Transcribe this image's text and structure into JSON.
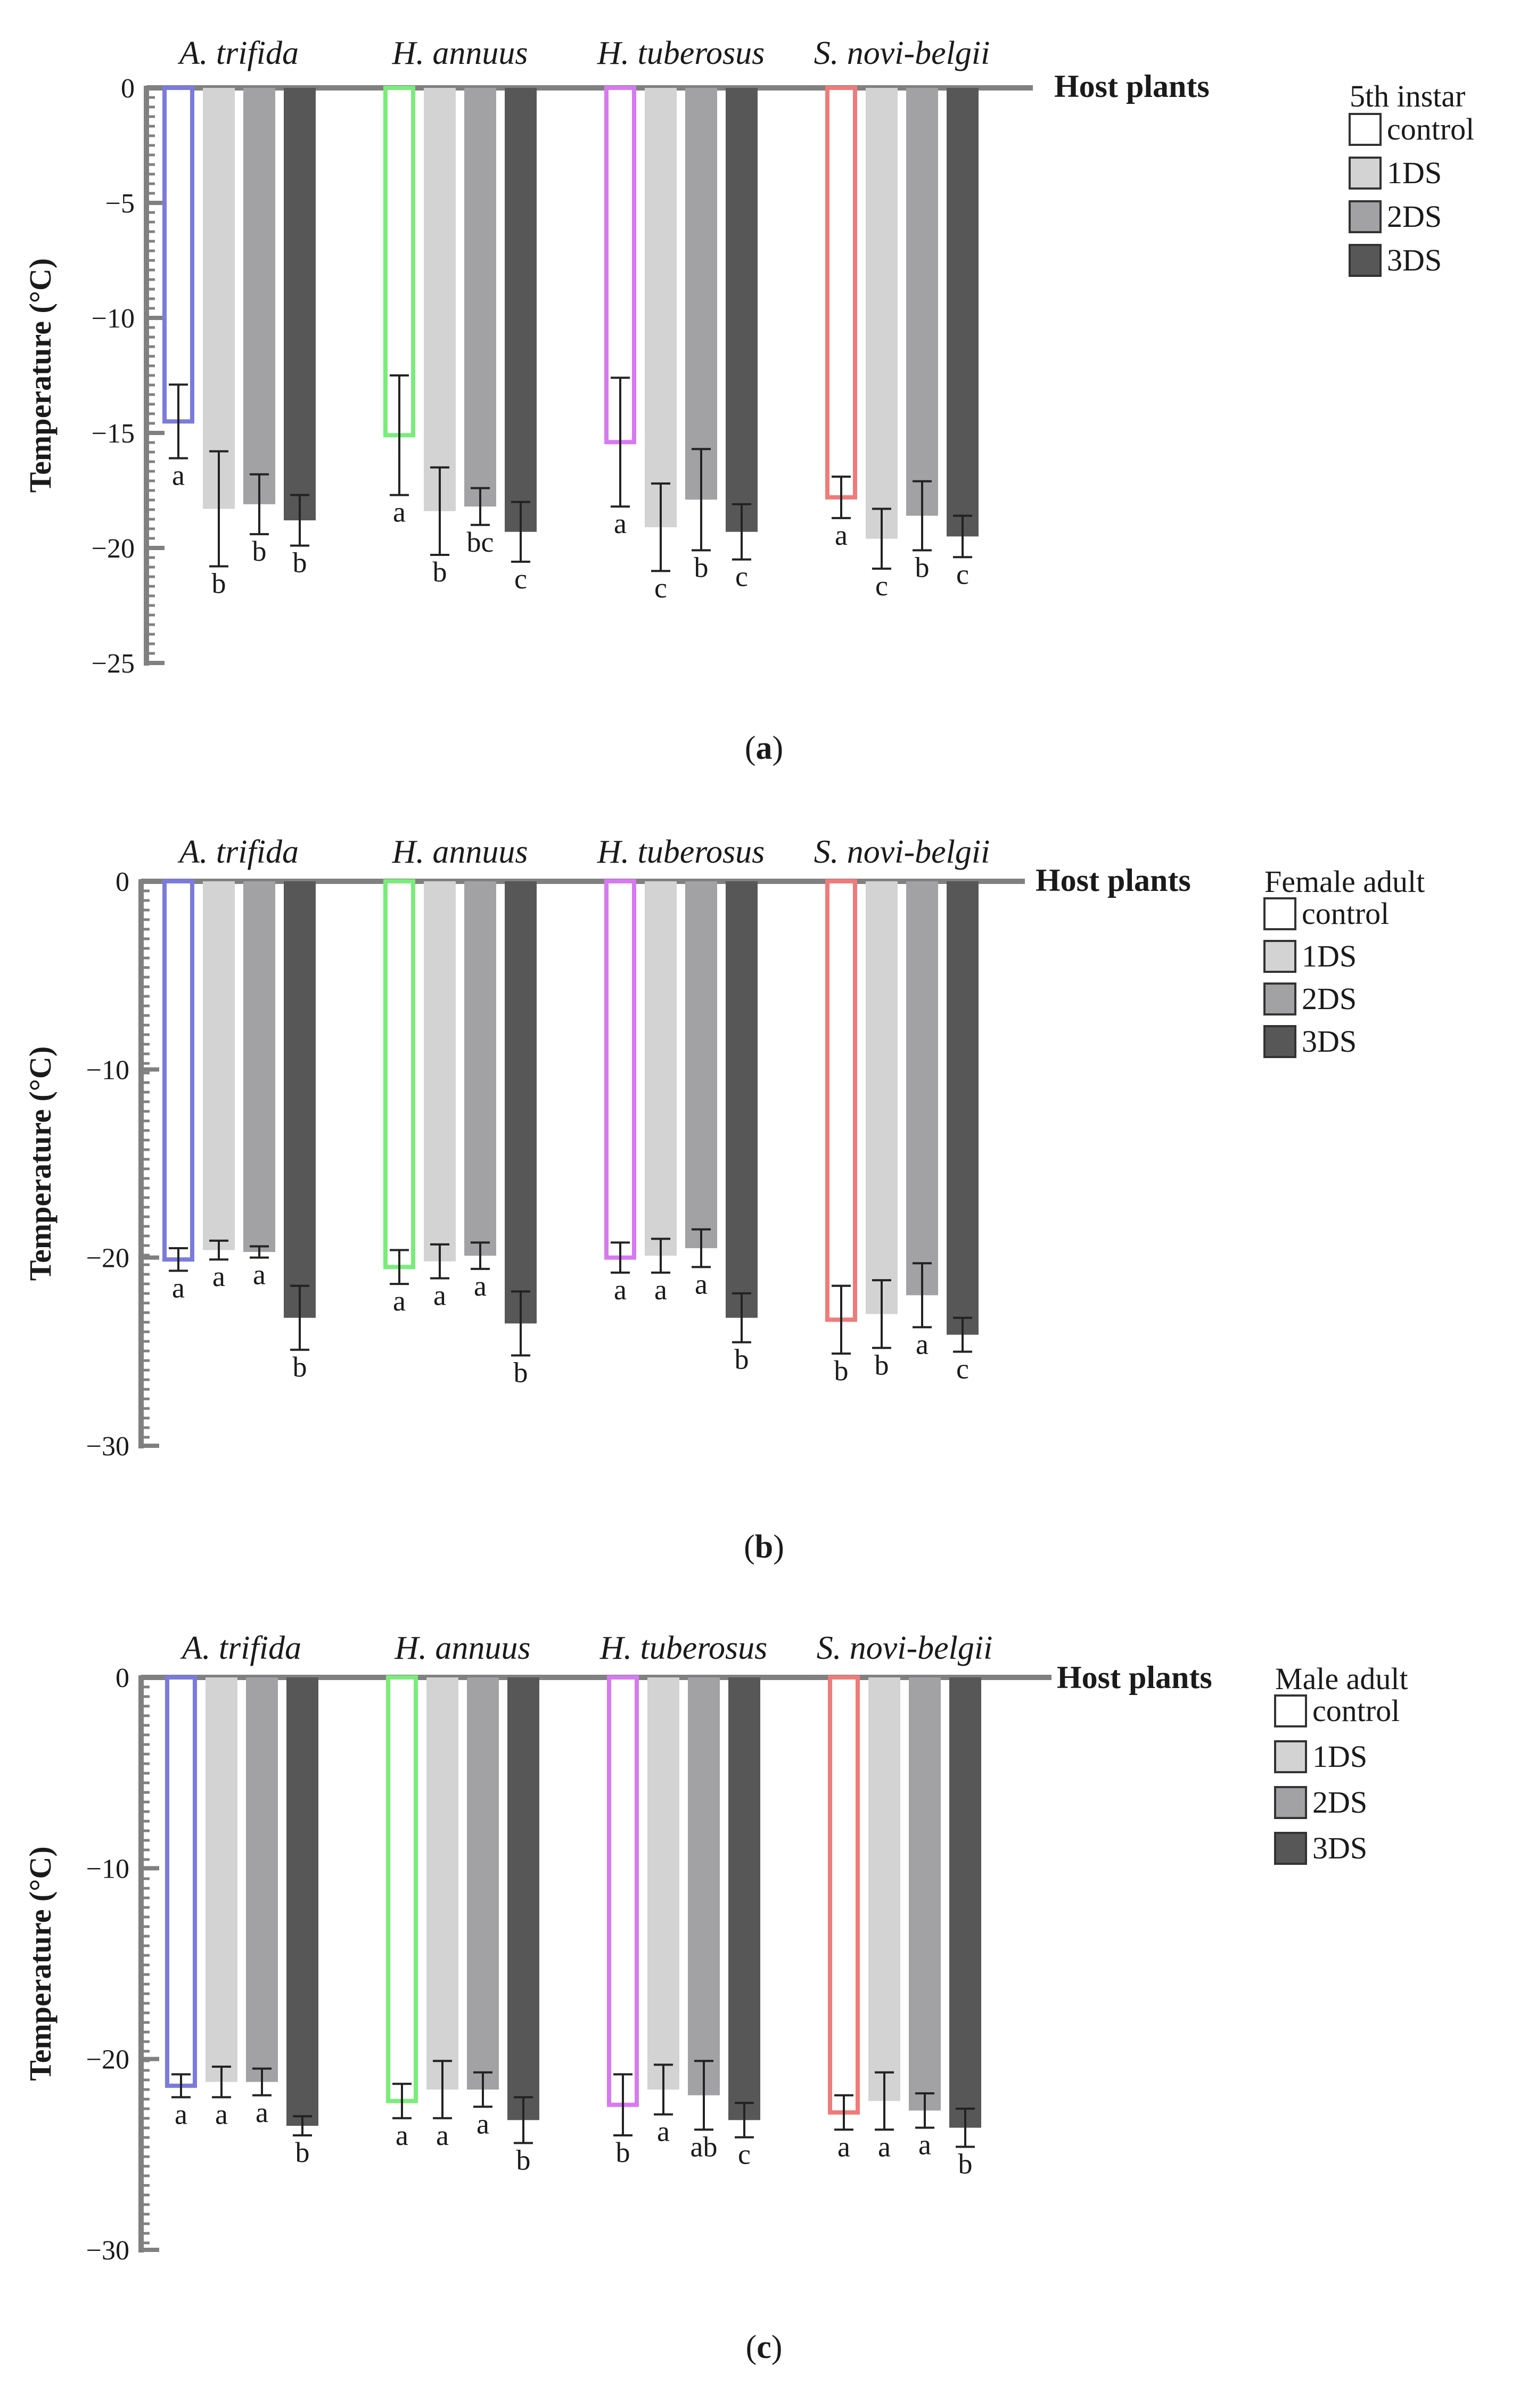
{
  "colors": {
    "axis": "#808080",
    "errorbar": "#222222",
    "fills": {
      "control": "#ffffff",
      "1DS": "#d3d3d3",
      "2DS": "#a2a2a5",
      "3DS": "#575757"
    },
    "control_outlines": [
      "#7b7bdc",
      "#7aec7a",
      "#d77af0",
      "#f07b7b"
    ]
  },
  "chart_data": [
    {
      "type": "bar",
      "panel_label": "a",
      "xlabel": "Host plants",
      "ylabel": "Temperature (°C)",
      "ylim": [
        -25,
        0
      ],
      "yticks": [
        0,
        -5,
        -10,
        -15,
        -20,
        -25
      ],
      "yticklabels": [
        "0",
        "−5",
        "−10",
        "−15",
        "−20",
        "−25"
      ],
      "legend_title": "5th instar",
      "legend": [
        "control",
        "1DS",
        "2DS",
        "3DS"
      ],
      "categories": [
        "A. trifida",
        "H. annuus",
        "H. tuberosus",
        "S. novi-belgii"
      ],
      "series": [
        {
          "name": "control",
          "values": [
            -14.5,
            -15.1,
            -15.4,
            -17.8
          ],
          "errors": [
            1.6,
            2.6,
            2.8,
            0.9
          ],
          "letters": [
            "a",
            "a",
            "a",
            "a"
          ]
        },
        {
          "name": "1DS",
          "values": [
            -18.3,
            -18.4,
            -19.1,
            -19.6
          ],
          "errors": [
            2.5,
            1.9,
            1.9,
            1.3
          ],
          "letters": [
            "b",
            "b",
            "c",
            "c"
          ]
        },
        {
          "name": "2DS",
          "values": [
            -18.1,
            -18.2,
            -17.9,
            -18.6
          ],
          "errors": [
            1.3,
            0.8,
            2.2,
            1.5
          ],
          "letters": [
            "b",
            "bc",
            "b",
            "b"
          ]
        },
        {
          "name": "3DS",
          "values": [
            -18.8,
            -19.3,
            -19.3,
            -19.5
          ],
          "errors": [
            1.1,
            1.3,
            1.2,
            0.9
          ],
          "letters": [
            "b",
            "c",
            "c",
            "c"
          ]
        }
      ]
    },
    {
      "type": "bar",
      "panel_label": "b",
      "xlabel": "Host plants",
      "ylabel": "Temperature (°C)",
      "ylim": [
        -30,
        0
      ],
      "yticks": [
        0,
        -10,
        -20,
        -30
      ],
      "yticklabels": [
        "0",
        "−10",
        "−20",
        "−30"
      ],
      "legend_title": "Female adult",
      "legend": [
        "control",
        "1DS",
        "2DS",
        "3DS"
      ],
      "categories": [
        "A. trifida",
        "H. annuus",
        "H. tuberosus",
        "S. novi-belgii"
      ],
      "series": [
        {
          "name": "control",
          "values": [
            -20.1,
            -20.5,
            -20.0,
            -23.3
          ],
          "errors": [
            0.6,
            0.9,
            0.8,
            1.8
          ],
          "letters": [
            "a",
            "a",
            "a",
            "b"
          ]
        },
        {
          "name": "1DS",
          "values": [
            -19.6,
            -20.2,
            -19.9,
            -23.0
          ],
          "errors": [
            0.5,
            0.9,
            0.9,
            1.8
          ],
          "letters": [
            "a",
            "a",
            "a",
            "b"
          ]
        },
        {
          "name": "2DS",
          "values": [
            -19.7,
            -19.9,
            -19.5,
            -22.0
          ],
          "errors": [
            0.3,
            0.7,
            1.0,
            1.7
          ],
          "letters": [
            "a",
            "a",
            "a",
            "a"
          ]
        },
        {
          "name": "3DS",
          "values": [
            -23.2,
            -23.5,
            -23.2,
            -24.1
          ],
          "errors": [
            1.7,
            1.7,
            1.3,
            0.9
          ],
          "letters": [
            "b",
            "b",
            "b",
            "c"
          ]
        }
      ]
    },
    {
      "type": "bar",
      "panel_label": "c",
      "xlabel": "Host plants",
      "ylabel": "Temperature (°C)",
      "ylim": [
        -30,
        0
      ],
      "yticks": [
        0,
        -10,
        -20,
        -30
      ],
      "yticklabels": [
        "0",
        "−10",
        "−20",
        "−30"
      ],
      "legend_title": "Male adult",
      "legend": [
        "control",
        "1DS",
        "2DS",
        "3DS"
      ],
      "categories": [
        "A. trifida",
        "H. annuus",
        "H. tuberosus",
        "S. novi-belgii"
      ],
      "series": [
        {
          "name": "control",
          "values": [
            -21.4,
            -22.2,
            -22.4,
            -22.8
          ],
          "errors": [
            0.6,
            0.9,
            1.6,
            0.9
          ],
          "letters": [
            "a",
            "a",
            "b",
            "a"
          ]
        },
        {
          "name": "1DS",
          "values": [
            -21.2,
            -21.6,
            -21.6,
            -22.2
          ],
          "errors": [
            0.8,
            1.5,
            1.3,
            1.5
          ],
          "letters": [
            "a",
            "a",
            "a",
            "a"
          ]
        },
        {
          "name": "2DS",
          "values": [
            -21.2,
            -21.6,
            -21.9,
            -22.7
          ],
          "errors": [
            0.7,
            0.9,
            1.8,
            0.9
          ],
          "letters": [
            "a",
            "a",
            "ab",
            "a"
          ]
        },
        {
          "name": "3DS",
          "values": [
            -23.5,
            -23.2,
            -23.2,
            -23.6
          ],
          "errors": [
            0.5,
            1.2,
            0.9,
            1.0
          ],
          "letters": [
            "b",
            "b",
            "c",
            "b"
          ]
        }
      ]
    }
  ]
}
